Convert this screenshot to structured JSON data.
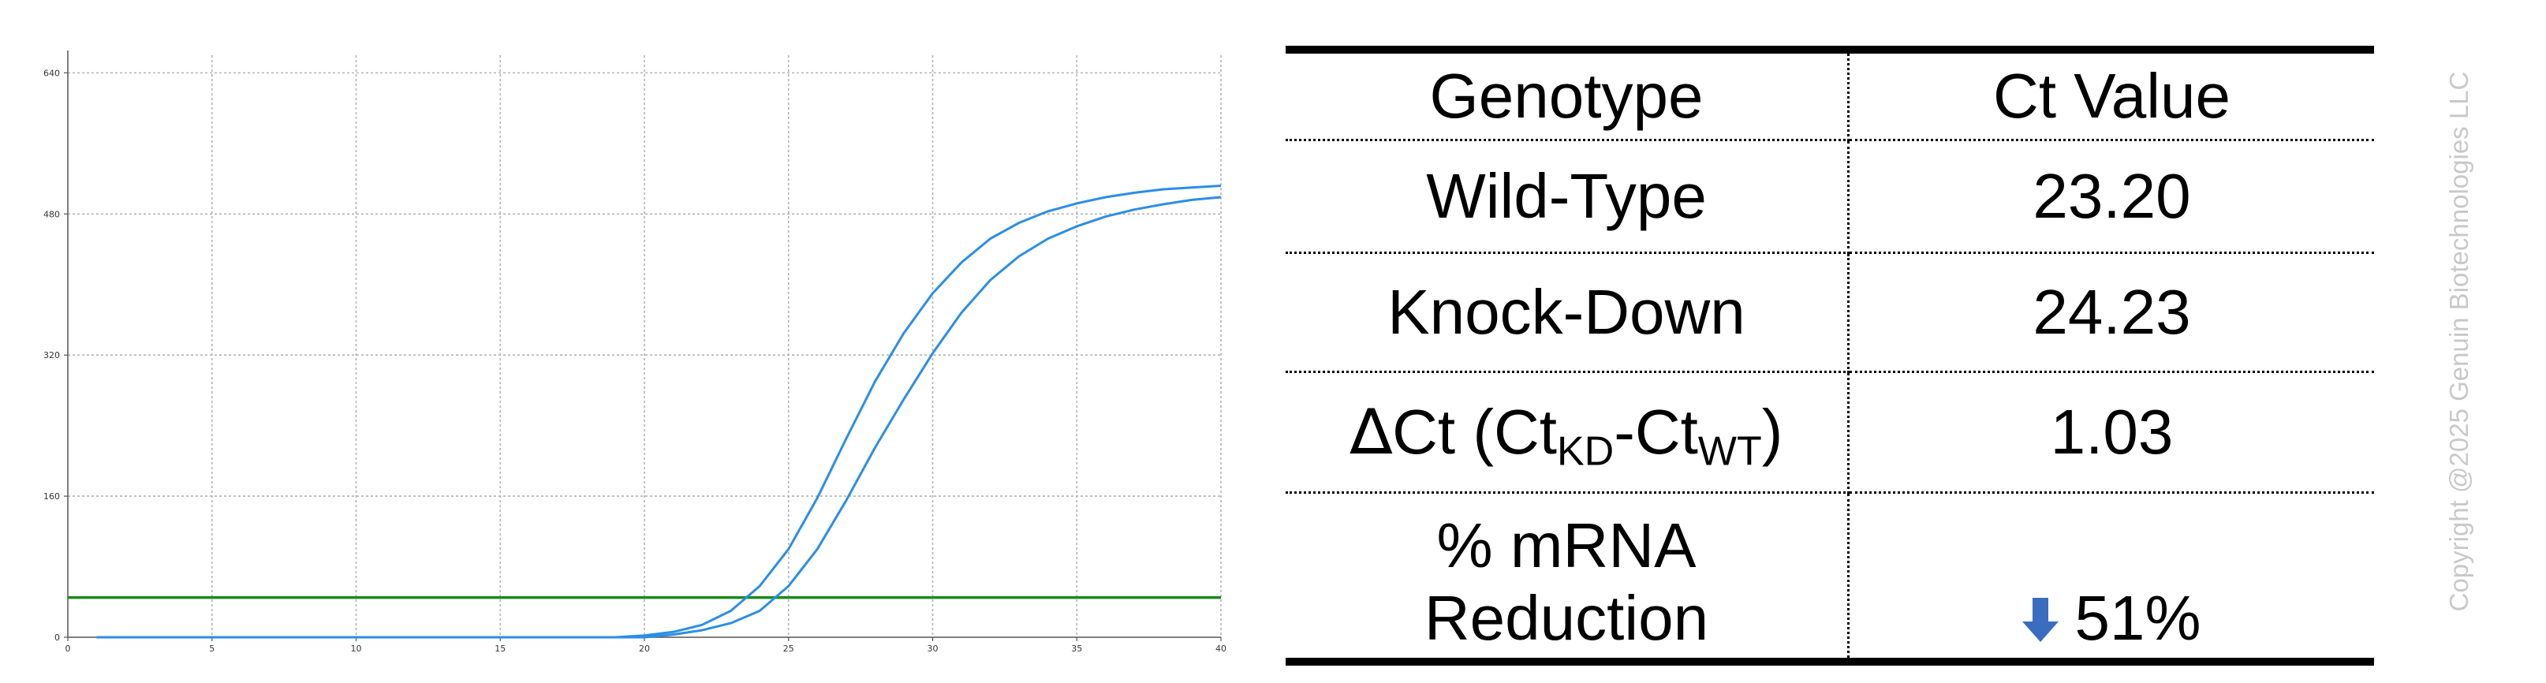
{
  "chart_data": {
    "type": "line",
    "title": "",
    "xlabel": "",
    "ylabel": "",
    "xlim": [
      0,
      40
    ],
    "ylim": [
      0,
      660
    ],
    "x_ticks": [
      0,
      5,
      10,
      15,
      20,
      25,
      30,
      35,
      40
    ],
    "y_ticks": [
      0,
      160,
      320,
      480,
      640
    ],
    "grid": true,
    "legend": "none",
    "threshold": {
      "y": 45,
      "color": "#1a8a1a"
    },
    "series": [
      {
        "color": "#2b8ee6",
        "x": [
          1,
          5,
          10,
          15,
          19,
          20,
          21,
          22,
          23,
          24,
          25,
          26,
          27,
          28,
          29,
          30,
          31,
          32,
          33,
          34,
          35,
          36,
          37,
          38,
          39,
          40
        ],
        "y": [
          0,
          0,
          0,
          0,
          0,
          2,
          6,
          14,
          30,
          58,
          100,
          158,
          225,
          290,
          345,
          390,
          425,
          452,
          470,
          483,
          492,
          499,
          504,
          508,
          510,
          512
        ]
      },
      {
        "color": "#2b8ee6",
        "x": [
          1,
          5,
          10,
          15,
          20,
          21,
          22,
          23,
          24,
          25,
          26,
          27,
          28,
          29,
          30,
          31,
          32,
          33,
          34,
          35,
          36,
          37,
          38,
          39,
          40
        ],
        "y": [
          0,
          0,
          0,
          0,
          0,
          3,
          8,
          16,
          30,
          58,
          100,
          155,
          215,
          270,
          322,
          368,
          405,
          432,
          452,
          466,
          477,
          485,
          491,
          496,
          499
        ]
      }
    ]
  },
  "table": {
    "header": {
      "genotype": "Genotype",
      "ct_value": "Ct Value"
    },
    "rows": [
      {
        "label": "Wild-Type",
        "value": "23.20"
      },
      {
        "label": "Knock-Down",
        "value": "24.23"
      }
    ],
    "delta_row": {
      "delta_symbol": "∆",
      "prefix": "Ct (Ct",
      "sub_kd": "KD",
      "dash": "-Ct",
      "sub_wt": "WT",
      "close": ")",
      "value": "1.03"
    },
    "reduction_row": {
      "label_line1": "% mRNA",
      "label_line2": "Reduction",
      "arrow_icon": "down-arrow-icon",
      "value": "51%"
    },
    "arrow_color": "#3a6cc0"
  },
  "copyright": "Copyright @2025 Genuin Biotechnologies LLC"
}
